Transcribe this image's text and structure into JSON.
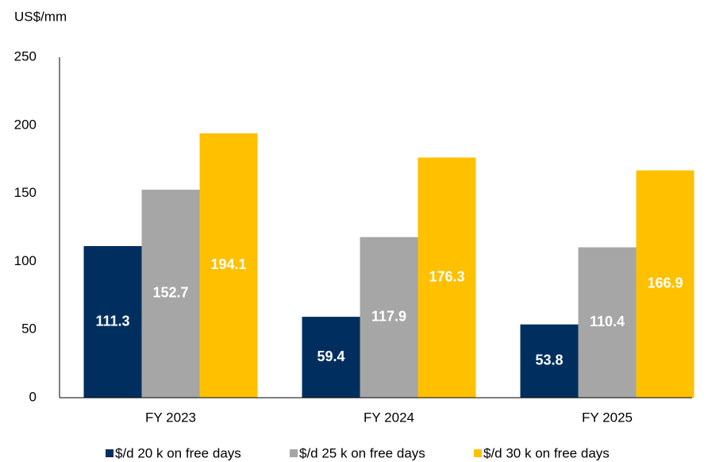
{
  "chart_data": {
    "type": "bar",
    "y_axis_label": "US$/mm",
    "categories": [
      "FY 2023",
      "FY 2024",
      "FY 2025"
    ],
    "series": [
      {
        "name": "$/d 20 k on free days",
        "color": "#002f5f",
        "values": [
          111.3,
          59.4,
          53.8
        ]
      },
      {
        "name": "$/d 25 k on free days",
        "color": "#a6a6a6",
        "values": [
          152.7,
          117.9,
          110.4
        ]
      },
      {
        "name": "$/d 30 k on free days",
        "color": "#ffc000",
        "values": [
          194.1,
          176.3,
          166.9
        ]
      }
    ],
    "ylim": [
      0,
      250
    ],
    "yticks": [
      0,
      50,
      100,
      150,
      200,
      250
    ],
    "grid": false,
    "legend": "bottom"
  }
}
